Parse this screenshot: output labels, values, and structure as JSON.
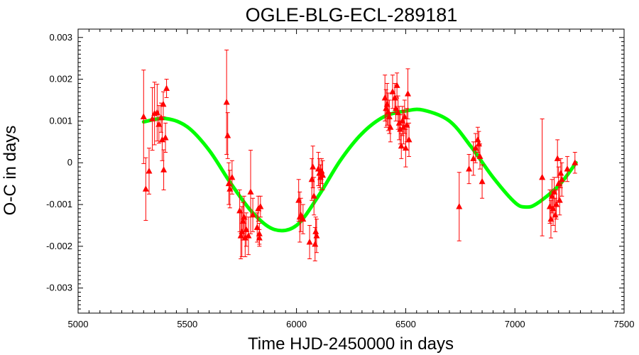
{
  "chart_data": {
    "type": "scatter",
    "title": "OGLE-BLG-ECL-289181",
    "xlabel": "Time HJD-2450000 in days",
    "ylabel": "O-C in days",
    "xlim": [
      5000,
      7500
    ],
    "ylim": [
      -0.0036,
      0.0032
    ],
    "x_ticks": [
      5000,
      5500,
      6000,
      6500,
      7000,
      7500
    ],
    "x_tick_labels": [
      "5000",
      "5500",
      "6000",
      "6500",
      "7000",
      "7500"
    ],
    "y_ticks": [
      0.003,
      0.002,
      0.001,
      0,
      -0.001,
      -0.002,
      -0.003
    ],
    "y_tick_labels": [
      "0.003",
      "0.002",
      "0.001",
      "0",
      "-0.001",
      "-0.002",
      "-0.003"
    ],
    "grid": false,
    "legend": "none",
    "colors": {
      "observations": "#ff0000",
      "model": "#00ff00"
    },
    "series": [
      {
        "kind": "points_with_error_bars",
        "marker": "triangle",
        "points": [
          {
            "x": 5300,
            "y": 0.0011,
            "err": 0.00112
          },
          {
            "x": 5310,
            "y": -0.00063,
            "err": 0.00075
          },
          {
            "x": 5325,
            "y": -0.0002,
            "err": 0.00055
          },
          {
            "x": 5340,
            "y": 0.00105,
            "err": 0.00075
          },
          {
            "x": 5350,
            "y": 0.00118,
            "err": 0.00075
          },
          {
            "x": 5362,
            "y": 0.0012,
            "err": 0.00068
          },
          {
            "x": 5370,
            "y": 0.00092,
            "err": 0.00045
          },
          {
            "x": 5380,
            "y": 0.00108,
            "err": 0.00035
          },
          {
            "x": 5385,
            "y": 0.00055,
            "err": 0.0005
          },
          {
            "x": 5390,
            "y": 0.0014,
            "err": 0.0003
          },
          {
            "x": 5392,
            "y": -0.00017,
            "err": 0.00048
          },
          {
            "x": 5400,
            "y": 0.0006,
            "err": 0.00035
          },
          {
            "x": 5405,
            "y": 0.00178,
            "err": 0.00022
          },
          {
            "x": 5680,
            "y": 0.00145,
            "err": 0.00125
          },
          {
            "x": 5685,
            "y": 0.00065,
            "err": 0.00055
          },
          {
            "x": 5690,
            "y": -0.0005,
            "err": 0.0005
          },
          {
            "x": 5695,
            "y": -0.00063,
            "err": 0.00045
          },
          {
            "x": 5705,
            "y": -0.00035,
            "err": 0.0004
          },
          {
            "x": 5740,
            "y": -0.00115,
            "err": 0.0005
          },
          {
            "x": 5745,
            "y": -0.00175,
            "err": 0.00055
          },
          {
            "x": 5750,
            "y": -0.00165,
            "err": 0.0006
          },
          {
            "x": 5755,
            "y": -0.0014,
            "err": 0.00045
          },
          {
            "x": 5760,
            "y": -0.0013,
            "err": 0.0005
          },
          {
            "x": 5765,
            "y": -0.0018,
            "err": 0.00045
          },
          {
            "x": 5770,
            "y": -0.0016,
            "err": 0.0004
          },
          {
            "x": 5780,
            "y": -0.00175,
            "err": 0.00045
          },
          {
            "x": 5790,
            "y": -0.0007,
            "err": 0.001
          },
          {
            "x": 5800,
            "y": -0.00125,
            "err": 0.0004
          },
          {
            "x": 5820,
            "y": -0.00155,
            "err": 0.00035
          },
          {
            "x": 5825,
            "y": -0.0011,
            "err": 0.0003
          },
          {
            "x": 5830,
            "y": -0.0017,
            "err": 0.00025
          },
          {
            "x": 5835,
            "y": -0.00105,
            "err": 0.00025
          },
          {
            "x": 5830,
            "y": -0.0018,
            "err": 0.0002
          },
          {
            "x": 6010,
            "y": -0.0009,
            "err": 0.0005
          },
          {
            "x": 6015,
            "y": -0.0013,
            "err": 0.0006
          },
          {
            "x": 6020,
            "y": -0.00125,
            "err": 0.0004
          },
          {
            "x": 6030,
            "y": -0.00135,
            "err": 0.00035
          },
          {
            "x": 6060,
            "y": -0.0019,
            "err": 0.0004
          },
          {
            "x": 6070,
            "y": -0.0004,
            "err": 0.0005
          },
          {
            "x": 6075,
            "y": -0.0001,
            "err": 0.0005
          },
          {
            "x": 6080,
            "y": -0.0008,
            "err": 0.00045
          },
          {
            "x": 6085,
            "y": -0.00195,
            "err": 0.0004
          },
          {
            "x": 6088,
            "y": -0.00165,
            "err": 0.00035
          },
          {
            "x": 6092,
            "y": -0.00175,
            "err": 0.0004
          },
          {
            "x": 6100,
            "y": -0.00015,
            "err": 0.0004
          },
          {
            "x": 6105,
            "y": -0.00025,
            "err": 0.00035
          },
          {
            "x": 6110,
            "y": -0.00035,
            "err": 0.0003
          },
          {
            "x": 6115,
            "y": -0.0002,
            "err": 0.0003
          },
          {
            "x": 6120,
            "y": -0.0003,
            "err": 0.00035
          },
          {
            "x": 6405,
            "y": 0.00155,
            "err": 0.00055
          },
          {
            "x": 6410,
            "y": 0.0013,
            "err": 0.00045
          },
          {
            "x": 6415,
            "y": 0.0014,
            "err": 0.0005
          },
          {
            "x": 6420,
            "y": 0.00122,
            "err": 0.00045
          },
          {
            "x": 6425,
            "y": 0.0011,
            "err": 0.0004
          },
          {
            "x": 6430,
            "y": 0.00085,
            "err": 0.00035
          },
          {
            "x": 6440,
            "y": 0.0017,
            "err": 0.0004
          },
          {
            "x": 6450,
            "y": 0.00155,
            "err": 0.00035
          },
          {
            "x": 6455,
            "y": 0.0013,
            "err": 0.0003
          },
          {
            "x": 6460,
            "y": 0.00185,
            "err": 0.0003
          },
          {
            "x": 6465,
            "y": 0.0012,
            "err": 0.0004
          },
          {
            "x": 6470,
            "y": 0.00095,
            "err": 0.0004
          },
          {
            "x": 6475,
            "y": 0.0008,
            "err": 0.00035
          },
          {
            "x": 6480,
            "y": 0.0004,
            "err": 0.0003
          },
          {
            "x": 6485,
            "y": 0.001,
            "err": 0.00035
          },
          {
            "x": 6490,
            "y": 0.00085,
            "err": 0.0004
          },
          {
            "x": 6495,
            "y": 0.0011,
            "err": 0.0004
          },
          {
            "x": 6500,
            "y": 0.00035,
            "err": 0.00045
          },
          {
            "x": 6505,
            "y": 0.0009,
            "err": 0.0004
          },
          {
            "x": 6510,
            "y": 0.00165,
            "err": 0.0006
          },
          {
            "x": 6515,
            "y": 0.00055,
            "err": 0.0004
          },
          {
            "x": 6745,
            "y": -0.00105,
            "err": 0.00082
          },
          {
            "x": 6790,
            "y": -0.00015,
            "err": 0.00035
          },
          {
            "x": 6810,
            "y": 0.0001,
            "err": 0.0004
          },
          {
            "x": 6820,
            "y": 0.00035,
            "err": 0.00035
          },
          {
            "x": 6830,
            "y": 0.00055,
            "err": 0.0003
          },
          {
            "x": 6835,
            "y": 0.00045,
            "err": 0.0003
          },
          {
            "x": 6840,
            "y": 0.00015,
            "err": 0.0003
          },
          {
            "x": 6850,
            "y": -0.00045,
            "err": 0.0004
          },
          {
            "x": 7125,
            "y": -0.00035,
            "err": 0.0014
          },
          {
            "x": 7160,
            "y": -0.00105,
            "err": 0.0004
          },
          {
            "x": 7165,
            "y": -0.00135,
            "err": 0.00045
          },
          {
            "x": 7170,
            "y": -0.0008,
            "err": 0.0004
          },
          {
            "x": 7175,
            "y": -0.0011,
            "err": 0.0004
          },
          {
            "x": 7180,
            "y": -0.0007,
            "err": 0.00035
          },
          {
            "x": 7185,
            "y": -0.00125,
            "err": 0.0004
          },
          {
            "x": 7190,
            "y": -0.001,
            "err": 0.00035
          },
          {
            "x": 7195,
            "y": 0.0001,
            "err": 0.00045
          },
          {
            "x": 7200,
            "y": -0.0005,
            "err": 0.0004
          },
          {
            "x": 7205,
            "y": -0.0009,
            "err": 0.00035
          },
          {
            "x": 7210,
            "y": -0.00025,
            "err": 0.00035
          },
          {
            "x": 7215,
            "y": -0.0004,
            "err": 0.0004
          },
          {
            "x": 7240,
            "y": -0.00015,
            "err": 0.0003
          },
          {
            "x": 7275,
            "y": 0.0,
            "err": 0.00025
          }
        ]
      },
      {
        "kind": "model_curve",
        "x": [
          5300,
          5400,
          5500,
          5600,
          5700,
          5800,
          5900,
          6000,
          6100,
          6200,
          6300,
          6400,
          6500,
          6580,
          6700,
          6800,
          6900,
          7000,
          7050,
          7100,
          7200,
          7280
        ],
        "y": [
          0.00098,
          0.00106,
          0.00086,
          0.0003,
          -0.0005,
          -0.0012,
          -0.0016,
          -0.0015,
          -0.0008,
          5e-05,
          0.0007,
          0.0011,
          0.00124,
          0.00126,
          0.001,
          0.00038,
          -0.00035,
          -0.00095,
          -0.00106,
          -0.00098,
          -0.00055,
          0.0
        ]
      }
    ]
  }
}
